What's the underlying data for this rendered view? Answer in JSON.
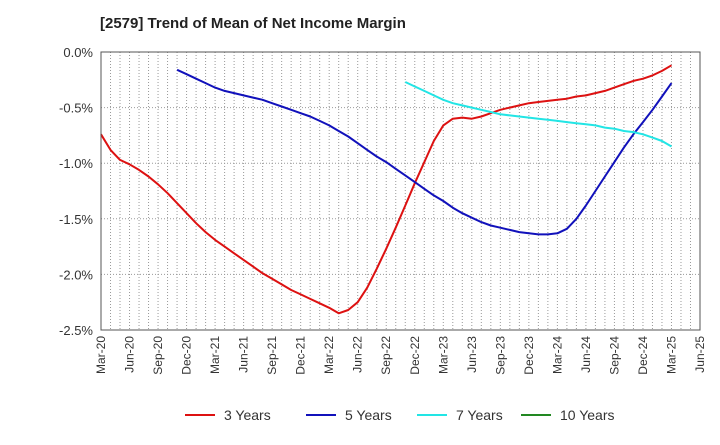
{
  "chart_data": {
    "type": "line",
    "title": "[2579]  Trend of Mean of Net Income Margin",
    "xlabel": "",
    "ylabel": "",
    "x_tick_labels": [
      "Mar-20",
      "Jun-20",
      "Sep-20",
      "Dec-20",
      "Mar-21",
      "Jun-21",
      "Sep-21",
      "Dec-21",
      "Mar-22",
      "Jun-22",
      "Sep-22",
      "Dec-22",
      "Mar-23",
      "Jun-23",
      "Sep-23",
      "Dec-23",
      "Mar-24",
      "Jun-24",
      "Sep-24",
      "Dec-24",
      "Mar-25",
      "Jun-25"
    ],
    "y_tick_labels": [
      "0.0%",
      "-0.5%",
      "-1.0%",
      "-1.5%",
      "-2.0%",
      "-2.5%"
    ],
    "ylim": [
      -2.5,
      0.0
    ],
    "grid": true,
    "legend_position": "bottom",
    "series": [
      {
        "name": "3 Years",
        "color": "#dd1111",
        "points": [
          [
            "Mar-20",
            -0.74
          ],
          [
            "Apr-20",
            -0.88
          ],
          [
            "May-20",
            -0.97
          ],
          [
            "Jun-20",
            -1.01
          ],
          [
            "Jul-20",
            -1.06
          ],
          [
            "Aug-20",
            -1.12
          ],
          [
            "Sep-20",
            -1.19
          ],
          [
            "Oct-20",
            -1.27
          ],
          [
            "Nov-20",
            -1.36
          ],
          [
            "Dec-20",
            -1.45
          ],
          [
            "Jan-21",
            -1.54
          ],
          [
            "Feb-21",
            -1.62
          ],
          [
            "Mar-21",
            -1.69
          ],
          [
            "Apr-21",
            -1.75
          ],
          [
            "May-21",
            -1.81
          ],
          [
            "Jun-21",
            -1.87
          ],
          [
            "Jul-21",
            -1.93
          ],
          [
            "Aug-21",
            -1.99
          ],
          [
            "Sep-21",
            -2.04
          ],
          [
            "Oct-21",
            -2.09
          ],
          [
            "Nov-21",
            -2.14
          ],
          [
            "Dec-21",
            -2.18
          ],
          [
            "Jan-22",
            -2.22
          ],
          [
            "Feb-22",
            -2.26
          ],
          [
            "Mar-22",
            -2.3
          ],
          [
            "Apr-22",
            -2.35
          ],
          [
            "May-22",
            -2.32
          ],
          [
            "Jun-22",
            -2.25
          ],
          [
            "Jul-22",
            -2.12
          ],
          [
            "Aug-22",
            -1.95
          ],
          [
            "Sep-22",
            -1.77
          ],
          [
            "Oct-22",
            -1.58
          ],
          [
            "Nov-22",
            -1.38
          ],
          [
            "Dec-22",
            -1.18
          ],
          [
            "Jan-23",
            -0.99
          ],
          [
            "Feb-23",
            -0.8
          ],
          [
            "Mar-23",
            -0.66
          ],
          [
            "Apr-23",
            -0.6
          ],
          [
            "May-23",
            -0.59
          ],
          [
            "Jun-23",
            -0.6
          ],
          [
            "Jul-23",
            -0.58
          ],
          [
            "Aug-23",
            -0.55
          ],
          [
            "Sep-23",
            -0.52
          ],
          [
            "Oct-23",
            -0.5
          ],
          [
            "Nov-23",
            -0.48
          ],
          [
            "Dec-23",
            -0.46
          ],
          [
            "Jan-24",
            -0.45
          ],
          [
            "Feb-24",
            -0.44
          ],
          [
            "Mar-24",
            -0.43
          ],
          [
            "Apr-24",
            -0.42
          ],
          [
            "May-24",
            -0.4
          ],
          [
            "Jun-24",
            -0.39
          ],
          [
            "Jul-24",
            -0.37
          ],
          [
            "Aug-24",
            -0.35
          ],
          [
            "Sep-24",
            -0.32
          ],
          [
            "Oct-24",
            -0.29
          ],
          [
            "Nov-24",
            -0.26
          ],
          [
            "Dec-24",
            -0.24
          ],
          [
            "Jan-25",
            -0.21
          ],
          [
            "Feb-25",
            -0.17
          ],
          [
            "Mar-25",
            -0.12
          ]
        ]
      },
      {
        "name": "5 Years",
        "color": "#1111bb",
        "points": [
          [
            "Nov-20",
            -0.16
          ],
          [
            "Dec-20",
            -0.2
          ],
          [
            "Jan-21",
            -0.24
          ],
          [
            "Feb-21",
            -0.28
          ],
          [
            "Mar-21",
            -0.32
          ],
          [
            "Apr-21",
            -0.35
          ],
          [
            "May-21",
            -0.37
          ],
          [
            "Jun-21",
            -0.39
          ],
          [
            "Jul-21",
            -0.41
          ],
          [
            "Aug-21",
            -0.43
          ],
          [
            "Sep-21",
            -0.46
          ],
          [
            "Oct-21",
            -0.49
          ],
          [
            "Nov-21",
            -0.52
          ],
          [
            "Dec-21",
            -0.55
          ],
          [
            "Jan-22",
            -0.58
          ],
          [
            "Feb-22",
            -0.62
          ],
          [
            "Mar-22",
            -0.66
          ],
          [
            "Apr-22",
            -0.71
          ],
          [
            "May-22",
            -0.76
          ],
          [
            "Jun-22",
            -0.82
          ],
          [
            "Jul-22",
            -0.88
          ],
          [
            "Aug-22",
            -0.94
          ],
          [
            "Sep-22",
            -0.99
          ],
          [
            "Oct-22",
            -1.05
          ],
          [
            "Nov-22",
            -1.11
          ],
          [
            "Dec-22",
            -1.17
          ],
          [
            "Jan-23",
            -1.23
          ],
          [
            "Feb-23",
            -1.29
          ],
          [
            "Mar-23",
            -1.34
          ],
          [
            "Apr-23",
            -1.4
          ],
          [
            "May-23",
            -1.45
          ],
          [
            "Jun-23",
            -1.49
          ],
          [
            "Jul-23",
            -1.53
          ],
          [
            "Aug-23",
            -1.56
          ],
          [
            "Sep-23",
            -1.58
          ],
          [
            "Oct-23",
            -1.6
          ],
          [
            "Nov-23",
            -1.62
          ],
          [
            "Dec-23",
            -1.63
          ],
          [
            "Jan-24",
            -1.64
          ],
          [
            "Feb-24",
            -1.64
          ],
          [
            "Mar-24",
            -1.63
          ],
          [
            "Apr-24",
            -1.59
          ],
          [
            "May-24",
            -1.5
          ],
          [
            "Jun-24",
            -1.38
          ],
          [
            "Jul-24",
            -1.25
          ],
          [
            "Aug-24",
            -1.12
          ],
          [
            "Sep-24",
            -0.99
          ],
          [
            "Oct-24",
            -0.86
          ],
          [
            "Nov-24",
            -0.74
          ],
          [
            "Dec-24",
            -0.63
          ],
          [
            "Jan-25",
            -0.52
          ],
          [
            "Feb-25",
            -0.4
          ],
          [
            "Mar-25",
            -0.28
          ]
        ]
      },
      {
        "name": "7 Years",
        "color": "#22e5e5",
        "points": [
          [
            "Nov-22",
            -0.27
          ],
          [
            "Dec-22",
            -0.31
          ],
          [
            "Jan-23",
            -0.35
          ],
          [
            "Feb-23",
            -0.39
          ],
          [
            "Mar-23",
            -0.43
          ],
          [
            "Apr-23",
            -0.46
          ],
          [
            "May-23",
            -0.48
          ],
          [
            "Jun-23",
            -0.5
          ],
          [
            "Jul-23",
            -0.52
          ],
          [
            "Aug-23",
            -0.54
          ],
          [
            "Sep-23",
            -0.56
          ],
          [
            "Oct-23",
            -0.57
          ],
          [
            "Nov-23",
            -0.58
          ],
          [
            "Dec-23",
            -0.59
          ],
          [
            "Jan-24",
            -0.6
          ],
          [
            "Feb-24",
            -0.61
          ],
          [
            "Mar-24",
            -0.62
          ],
          [
            "Apr-24",
            -0.63
          ],
          [
            "May-24",
            -0.64
          ],
          [
            "Jun-24",
            -0.65
          ],
          [
            "Jul-24",
            -0.66
          ],
          [
            "Aug-24",
            -0.68
          ],
          [
            "Sep-24",
            -0.69
          ],
          [
            "Oct-24",
            -0.71
          ],
          [
            "Nov-24",
            -0.72
          ],
          [
            "Dec-24",
            -0.74
          ],
          [
            "Jan-25",
            -0.77
          ],
          [
            "Feb-25",
            -0.8
          ],
          [
            "Mar-25",
            -0.85
          ]
        ]
      },
      {
        "name": "10 Years",
        "color": "#228822",
        "points": []
      }
    ]
  }
}
